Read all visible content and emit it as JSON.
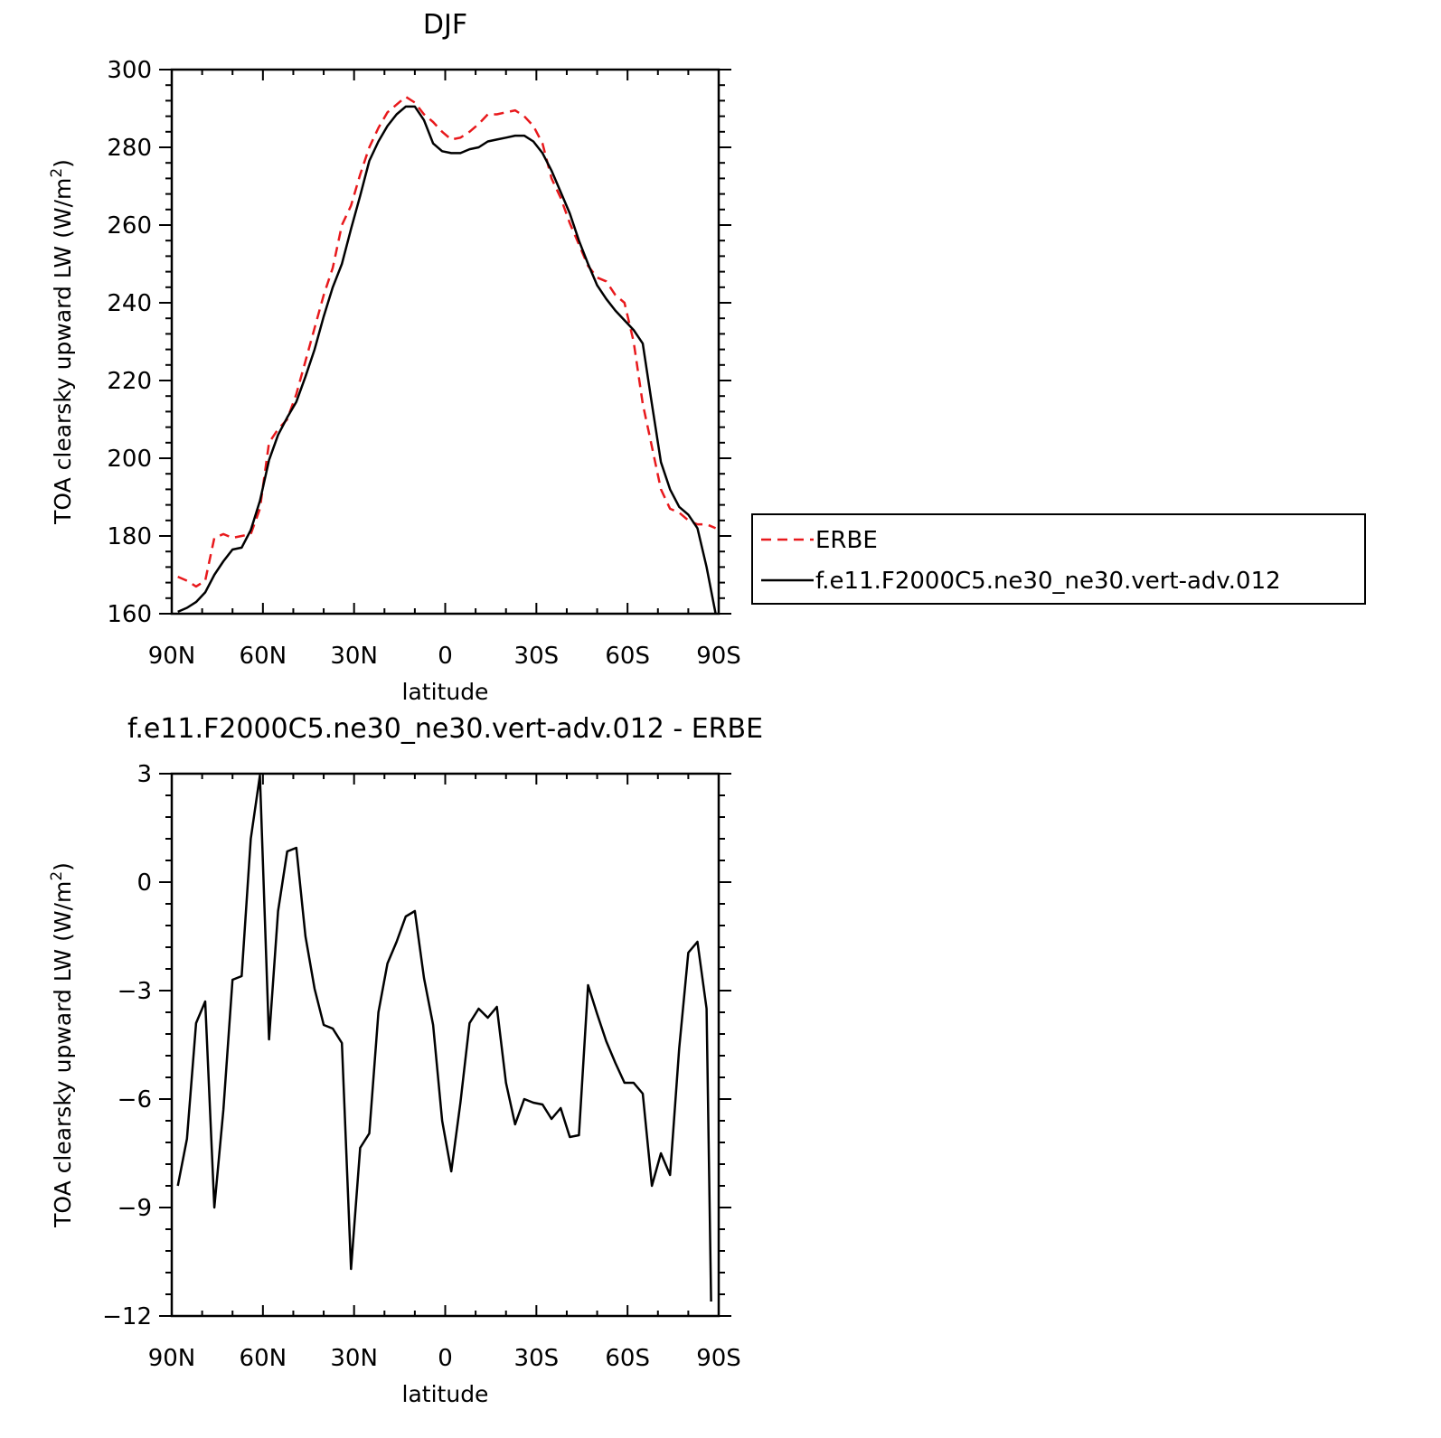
{
  "chart_data": [
    {
      "type": "line",
      "title": "DJF",
      "xlabel": "latitude",
      "ylabel": "TOA clearsky upward LW (W/m",
      "ylabel_sup": "2",
      "ylabel_tail": ")",
      "xlim": [
        90,
        -90
      ],
      "ylim": [
        160,
        300
      ],
      "x_ticks": [
        90,
        60,
        30,
        0,
        -30,
        -60,
        -90
      ],
      "x_tick_labels": [
        "90N",
        "60N",
        "30N",
        "0",
        "30S",
        "60S",
        "90S"
      ],
      "y_ticks": [
        160,
        180,
        200,
        220,
        240,
        260,
        280,
        300
      ],
      "y_tick_labels": [
        "160",
        "180",
        "200",
        "220",
        "240",
        "260",
        "280",
        "300"
      ],
      "grid": false,
      "legend": {
        "placement": "right",
        "entries": [
          "ERBE",
          "f.e11.F2000C5.ne30_ne30.vert-adv.012"
        ]
      },
      "series": [
        {
          "name": "ERBE",
          "color": "#e8191c",
          "dash": true,
          "x": [
            88,
            85,
            82,
            79,
            76,
            73,
            70,
            67,
            64,
            61,
            58,
            55,
            52,
            49,
            46,
            43,
            40,
            37,
            34,
            31,
            28,
            25,
            22,
            19,
            16,
            13,
            10,
            7,
            4,
            1,
            -2,
            -5,
            -8,
            -11,
            -14,
            -17,
            -20,
            -23,
            -26,
            -29,
            -32,
            -35,
            -38,
            -41,
            -44,
            -47,
            -50,
            -53,
            -56,
            -59,
            -62,
            -65,
            -68,
            -71,
            -74,
            -77,
            -80,
            -83,
            -86,
            -89
          ],
          "y": [
            169.5,
            168.5,
            167,
            168.5,
            179.5,
            180.5,
            179.5,
            180,
            180.5,
            187,
            204,
            207.5,
            210,
            216.5,
            225,
            233.5,
            242,
            249,
            260,
            265,
            273,
            280,
            285,
            289,
            291,
            293,
            291.5,
            288.5,
            286.5,
            284,
            282,
            282.5,
            284,
            286,
            288.5,
            288.5,
            289,
            289.5,
            288,
            285.5,
            281,
            272,
            267,
            260.5,
            255,
            249.5,
            246.5,
            245.5,
            242,
            240,
            230,
            214,
            203,
            192,
            187,
            186,
            184,
            183,
            183,
            182
          ]
        },
        {
          "name": "f.e11.F2000C5.ne30_ne30.vert-adv.012",
          "color": "#000000",
          "dash": false,
          "x": [
            88,
            85,
            82,
            79,
            76,
            73,
            70,
            67,
            64,
            61,
            58,
            55,
            52,
            49,
            46,
            43,
            40,
            37,
            34,
            31,
            28,
            25,
            22,
            19,
            16,
            13,
            10,
            7,
            4,
            1,
            -2,
            -5,
            -8,
            -11,
            -14,
            -17,
            -20,
            -23,
            -26,
            -29,
            -32,
            -35,
            -38,
            -41,
            -44,
            -47,
            -50,
            -53,
            -56,
            -59,
            -62,
            -65,
            -68,
            -71,
            -74,
            -77,
            -80,
            -83,
            -86,
            -89
          ],
          "y": [
            160.5,
            161.5,
            163,
            165.5,
            170,
            173.5,
            176.5,
            177,
            181.5,
            189,
            199.5,
            206,
            210.5,
            214.5,
            221,
            228,
            236.5,
            244,
            250,
            259,
            267.5,
            276.5,
            281.5,
            285.5,
            288.5,
            290.5,
            290.5,
            287,
            281,
            279,
            278.5,
            278.5,
            279.5,
            280,
            281.5,
            282,
            282.5,
            283,
            283,
            281.5,
            278.5,
            274,
            268.5,
            263,
            256,
            250,
            244.5,
            241,
            238,
            235.5,
            233,
            229.5,
            214,
            199,
            192,
            187.5,
            185.5,
            182,
            172,
            160
          ]
        }
      ]
    },
    {
      "type": "line",
      "title": "f.e11.F2000C5.ne30_ne30.vert-adv.012 - ERBE",
      "xlabel": "latitude",
      "ylabel": "TOA clearsky upward LW (W/m",
      "ylabel_sup": "2",
      "ylabel_tail": ")",
      "xlim": [
        90,
        -90
      ],
      "ylim": [
        -12,
        3
      ],
      "x_ticks": [
        90,
        60,
        30,
        0,
        -30,
        -60,
        -90
      ],
      "x_tick_labels": [
        "90N",
        "60N",
        "30N",
        "0",
        "30S",
        "60S",
        "90S"
      ],
      "y_ticks": [
        -12,
        -9,
        -6,
        -3,
        0,
        3
      ],
      "y_tick_labels": [
        "-12",
        "-9",
        "-6",
        "-3",
        "0",
        "3"
      ],
      "grid": false,
      "series": [
        {
          "color": "#000000",
          "dash": false,
          "x": [
            88,
            85,
            82,
            79,
            76,
            73,
            70,
            67,
            64,
            61,
            58,
            55,
            52,
            49,
            46,
            43,
            40,
            37,
            34,
            31,
            28,
            25,
            22,
            19,
            16,
            13,
            10,
            7,
            4,
            1,
            -2,
            -5,
            -8,
            -11,
            -14,
            -17,
            -20,
            -23,
            -26,
            -29,
            -32,
            -35,
            -38,
            -41,
            -44,
            -47,
            -50,
            -53,
            -56,
            -59,
            -62,
            -65,
            -68,
            -71,
            -74,
            -77,
            -80,
            -83,
            -86,
            -87.5
          ],
          "y": [
            -8.4,
            -7.1,
            -3.9,
            -3.3,
            -9,
            -6.3,
            -2.7,
            -2.6,
            1.2,
            2.95,
            -4.35,
            -0.8,
            0.85,
            0.95,
            -1.5,
            -2.95,
            -3.95,
            -4.05,
            -4.45,
            -10.7,
            -7.35,
            -6.95,
            -3.6,
            -2.25,
            -1.65,
            -0.95,
            -0.8,
            -2.65,
            -3.95,
            -6.6,
            -8,
            -6.1,
            -3.9,
            -3.5,
            -3.75,
            -3.45,
            -5.55,
            -6.7,
            -6,
            -6.1,
            -6.15,
            -6.55,
            -6.25,
            -7.05,
            -7,
            -2.85,
            -3.65,
            -4.4,
            -5,
            -5.55,
            -5.55,
            -5.85,
            -8.4,
            -7.5,
            -8.1,
            -4.6,
            -1.95,
            -1.65,
            -3.5,
            -11.6
          ]
        }
      ]
    }
  ]
}
